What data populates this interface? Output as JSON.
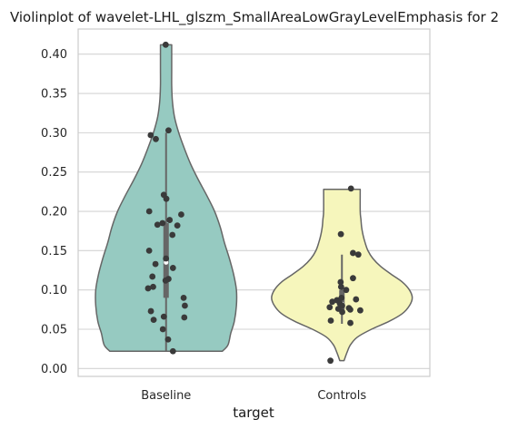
{
  "chart_data": {
    "type": "violin",
    "title": "Violinplot of wavelet-LHL_glszm_SmallAreaLowGrayLevelEmphasis for 2",
    "xlabel": "target",
    "ylabel": "",
    "ylim": [
      -0.01,
      0.432
    ],
    "yticks": [
      "0.00",
      "0.05",
      "0.10",
      "0.15",
      "0.20",
      "0.25",
      "0.30",
      "0.35",
      "0.40"
    ],
    "ytick_values": [
      0.0,
      0.05,
      0.1,
      0.15,
      0.2,
      0.25,
      0.3,
      0.35,
      0.4
    ],
    "grid": "horizontal",
    "categories": [
      "Baseline",
      "Controls"
    ],
    "colors": {
      "Baseline": "#96cac1",
      "Controls": "#f6f6bc",
      "edge": "#666666",
      "points": "#3a3a3a"
    },
    "violins": [
      {
        "name": "Baseline",
        "min": 0.022,
        "max": 0.412,
        "q1": 0.09,
        "median": 0.135,
        "q3": 0.185,
        "whisker_low": 0.022,
        "whisker_high": 0.3,
        "profile": [
          [
            0.022,
            0.8
          ],
          [
            0.03,
            0.88
          ],
          [
            0.045,
            0.92
          ],
          [
            0.06,
            0.97
          ],
          [
            0.08,
            1.0
          ],
          [
            0.1,
            1.0
          ],
          [
            0.12,
            0.96
          ],
          [
            0.14,
            0.9
          ],
          [
            0.16,
            0.83
          ],
          [
            0.18,
            0.77
          ],
          [
            0.2,
            0.69
          ],
          [
            0.22,
            0.58
          ],
          [
            0.24,
            0.46
          ],
          [
            0.26,
            0.35
          ],
          [
            0.28,
            0.26
          ],
          [
            0.3,
            0.18
          ],
          [
            0.32,
            0.12
          ],
          [
            0.34,
            0.09
          ],
          [
            0.36,
            0.08
          ],
          [
            0.38,
            0.08
          ],
          [
            0.412,
            0.08
          ]
        ],
        "points": [
          0.412,
          0.303,
          0.297,
          0.292,
          0.221,
          0.216,
          0.2,
          0.196,
          0.189,
          0.185,
          0.183,
          0.182,
          0.17,
          0.15,
          0.14,
          0.133,
          0.128,
          0.117,
          0.114,
          0.112,
          0.104,
          0.102,
          0.09,
          0.08,
          0.073,
          0.066,
          0.065,
          0.062,
          0.05,
          0.037,
          0.022
        ]
      },
      {
        "name": "Controls",
        "min": 0.01,
        "max": 0.228,
        "q1": 0.075,
        "median": 0.082,
        "q3": 0.1,
        "whisker_low": 0.057,
        "whisker_high": 0.145,
        "profile": [
          [
            0.01,
            0.03
          ],
          [
            0.02,
            0.07
          ],
          [
            0.03,
            0.12
          ],
          [
            0.04,
            0.22
          ],
          [
            0.05,
            0.42
          ],
          [
            0.06,
            0.67
          ],
          [
            0.07,
            0.86
          ],
          [
            0.08,
            0.96
          ],
          [
            0.09,
            1.0
          ],
          [
            0.1,
            0.96
          ],
          [
            0.11,
            0.86
          ],
          [
            0.12,
            0.7
          ],
          [
            0.13,
            0.55
          ],
          [
            0.14,
            0.44
          ],
          [
            0.15,
            0.37
          ],
          [
            0.16,
            0.33
          ],
          [
            0.17,
            0.3
          ],
          [
            0.18,
            0.28
          ],
          [
            0.19,
            0.27
          ],
          [
            0.2,
            0.26
          ],
          [
            0.228,
            0.26
          ]
        ],
        "points": [
          0.229,
          0.171,
          0.147,
          0.145,
          0.115,
          0.11,
          0.104,
          0.1,
          0.09,
          0.088,
          0.087,
          0.085,
          0.083,
          0.08,
          0.078,
          0.077,
          0.076,
          0.075,
          0.074,
          0.072,
          0.061,
          0.058,
          0.01
        ]
      }
    ]
  }
}
